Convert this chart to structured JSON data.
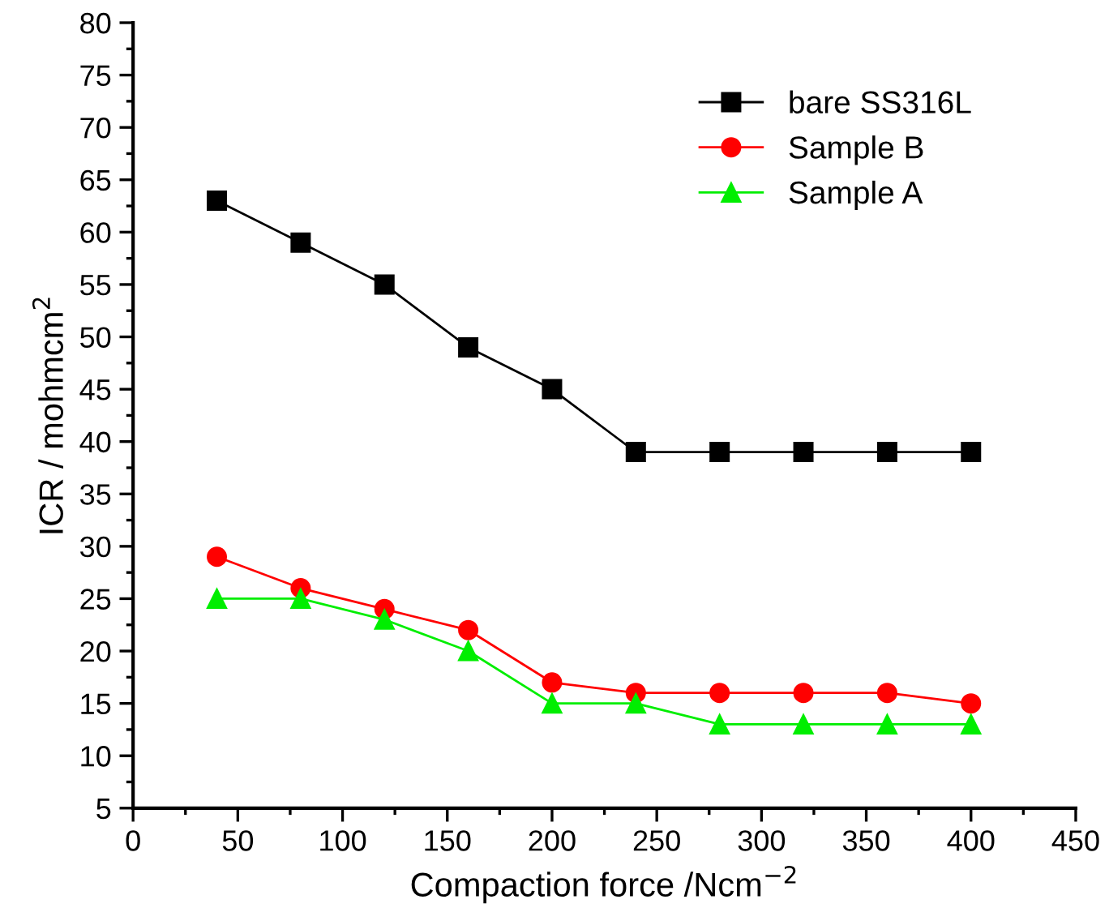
{
  "chart_data": {
    "type": "line",
    "xlabel": "Compaction force /Ncm$^{−2}$",
    "ylabel": "ICR / mohmcm$^{2}$",
    "x": [
      40,
      80,
      120,
      160,
      200,
      240,
      280,
      320,
      360,
      400
    ],
    "series": [
      {
        "name": "bare SS316L",
        "color": "#000000",
        "marker": "square",
        "values": [
          63,
          59,
          55,
          49,
          45,
          39,
          39,
          39,
          39,
          39
        ]
      },
      {
        "name": "Sample B",
        "color": "#ff0000",
        "marker": "circle",
        "values": [
          29,
          26,
          24,
          22,
          17,
          16,
          16,
          16,
          16,
          15
        ]
      },
      {
        "name": "Sample A",
        "color": "#00ee00",
        "marker": "triangle",
        "values": [
          25,
          25,
          23,
          20,
          15,
          15,
          13,
          13,
          13,
          13
        ]
      }
    ],
    "xlim": [
      0,
      450
    ],
    "xticks": [
      0,
      50,
      100,
      150,
      200,
      250,
      300,
      350,
      400,
      450
    ],
    "ylim": [
      5,
      80
    ],
    "yticks": [
      5,
      10,
      15,
      20,
      25,
      30,
      35,
      40,
      45,
      50,
      55,
      60,
      65,
      70,
      75,
      80
    ],
    "grid": false,
    "legend": "top right",
    "line_style": "solid"
  }
}
